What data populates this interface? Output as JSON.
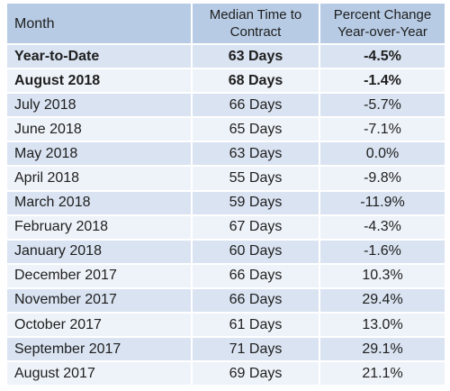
{
  "chart_data": {
    "type": "table",
    "columns": [
      "Month",
      "Median Time to Contract",
      "Percent Change Year-over-Year"
    ],
    "rows": [
      {
        "month": "Year-to-Date",
        "median_time": "63 Days",
        "pct_change": "-4.5%",
        "bold": true
      },
      {
        "month": "August 2018",
        "median_time": "68 Days",
        "pct_change": "-1.4%",
        "bold": true
      },
      {
        "month": "July 2018",
        "median_time": "66 Days",
        "pct_change": "-5.7%",
        "bold": false
      },
      {
        "month": "June 2018",
        "median_time": "65 Days",
        "pct_change": "-7.1%",
        "bold": false
      },
      {
        "month": "May 2018",
        "median_time": "63 Days",
        "pct_change": "0.0%",
        "bold": false
      },
      {
        "month": "April 2018",
        "median_time": "55 Days",
        "pct_change": "-9.8%",
        "bold": false
      },
      {
        "month": "March 2018",
        "median_time": "59 Days",
        "pct_change": "-11.9%",
        "bold": false
      },
      {
        "month": "February 2018",
        "median_time": "67 Days",
        "pct_change": "-4.3%",
        "bold": false
      },
      {
        "month": "January 2018",
        "median_time": "60 Days",
        "pct_change": "-1.6%",
        "bold": false
      },
      {
        "month": "December 2017",
        "median_time": "66 Days",
        "pct_change": "10.3%",
        "bold": false
      },
      {
        "month": "November 2017",
        "median_time": "66 Days",
        "pct_change": "29.4%",
        "bold": false
      },
      {
        "month": "October 2017",
        "median_time": "61 Days",
        "pct_change": "13.0%",
        "bold": false
      },
      {
        "month": "September 2017",
        "median_time": "71 Days",
        "pct_change": "29.1%",
        "bold": false
      },
      {
        "month": "August 2017",
        "median_time": "69 Days",
        "pct_change": "21.1%",
        "bold": false
      }
    ]
  },
  "header": {
    "month": "Month",
    "median_line1": "Median Time to",
    "median_line2": "Contract",
    "pct_line1": "Percent Change",
    "pct_line2": "Year-over-Year"
  },
  "colors": {
    "header_bg": "#b7cbe4",
    "row_odd_bg": "#d9e3f1",
    "row_even_bg": "#eef3f9",
    "text": "#1e1e1e"
  }
}
